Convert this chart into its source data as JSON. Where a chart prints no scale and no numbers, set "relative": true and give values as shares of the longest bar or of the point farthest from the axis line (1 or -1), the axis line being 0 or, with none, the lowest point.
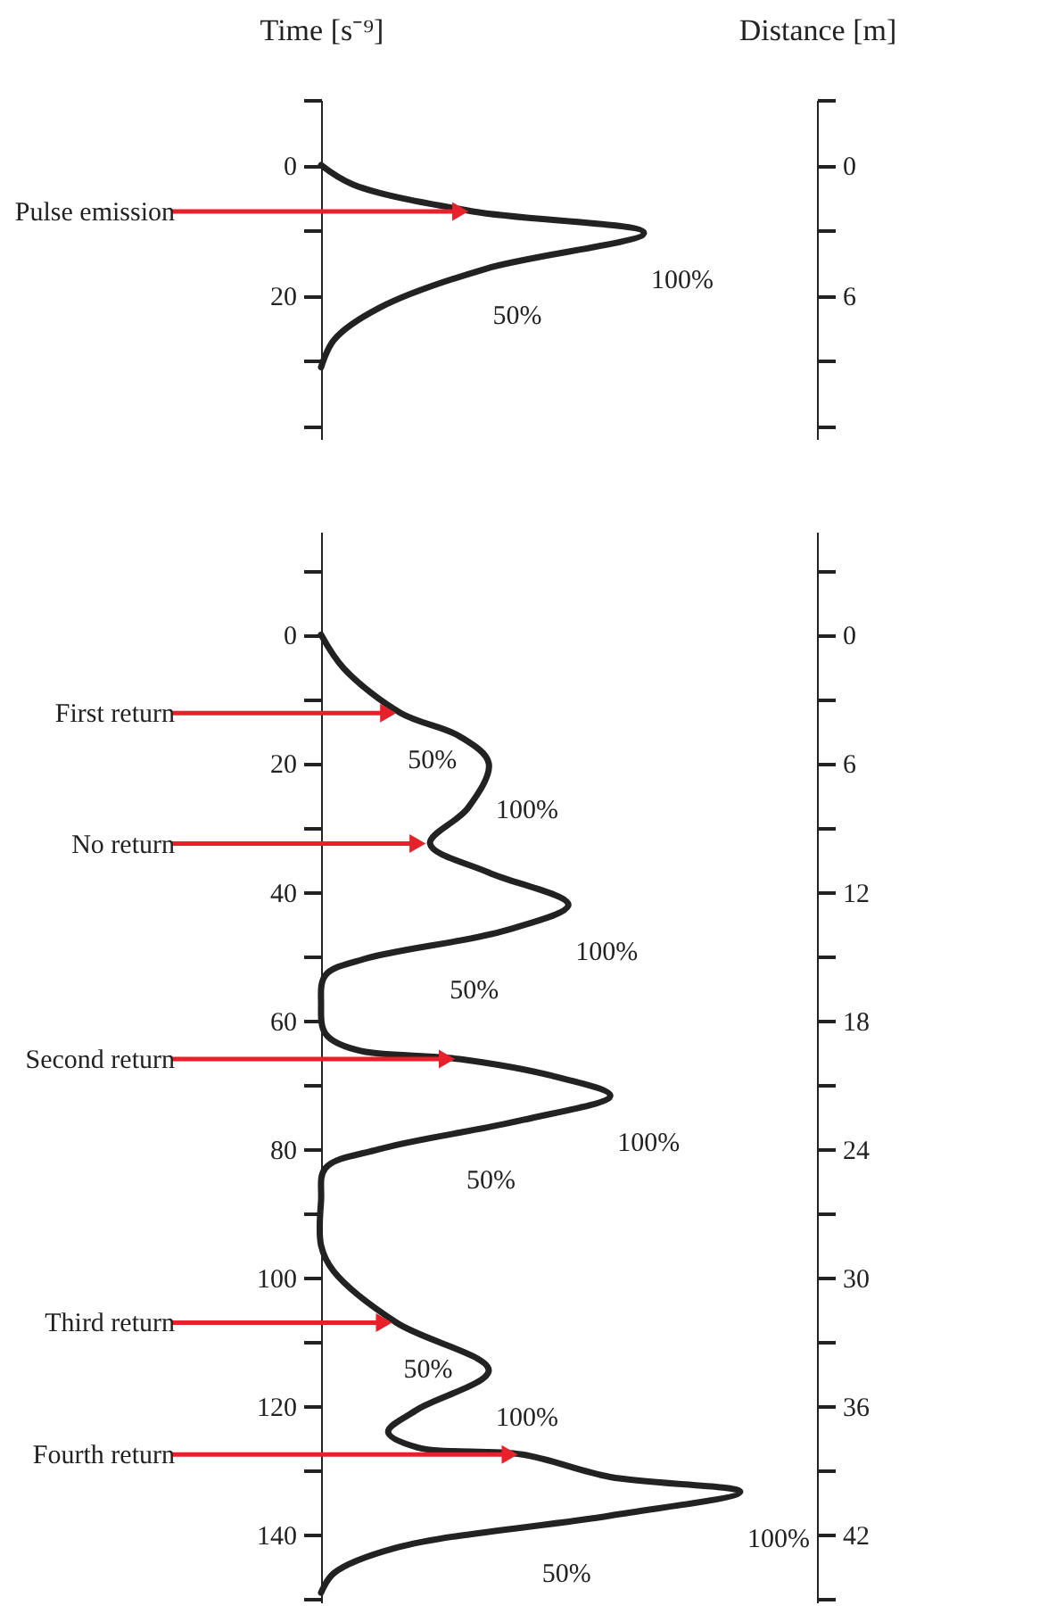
{
  "chart_data": [
    {
      "type": "line",
      "relative": true,
      "orientation": "horizontal",
      "ylabel": "Time [s⁻⁹]",
      "y2label": "Distance [m]",
      "ylim": [
        42,
        -10
      ],
      "yticks": [
        {
          "value": -10,
          "label": null
        },
        0,
        {
          "value": 10,
          "label": null
        },
        20,
        {
          "value": 30,
          "label": null
        },
        {
          "value": 40,
          "label": null
        }
      ],
      "y2lim": [
        12.6,
        -3
      ],
      "y2ticks": [
        {
          "value": -3,
          "label": null
        },
        0,
        {
          "value": 3,
          "label": null
        },
        6,
        {
          "value": 9,
          "label": null
        },
        {
          "value": 12,
          "label": null
        }
      ],
      "ref_lines": [
        {
          "axis": "y",
          "value": 7.1,
          "label": "Pulse emission",
          "color": "#e8202a"
        }
      ],
      "annotations": [
        {
          "text": "50%",
          "x": 0.51,
          "y": 15.9
        },
        {
          "text": "100%",
          "x": 1.0,
          "y": 10.4
        }
      ],
      "series": [
        {
          "color": "#222222",
          "x": [
            0,
            3,
            7.1,
            10.4,
            15.9,
            21.9,
            26.8,
            31
          ],
          "values": [
            0,
            0.1,
            0.47,
            1.0,
            0.51,
            0.18,
            0.04,
            0
          ]
        }
      ]
    },
    {
      "type": "line",
      "relative": true,
      "orientation": "horizontal",
      "ylim": [
        150.5,
        -16
      ],
      "yticks": [
        {
          "value": -10,
          "label": null
        },
        0,
        {
          "value": 10,
          "label": null
        },
        20,
        {
          "value": 30,
          "label": null
        },
        40,
        {
          "value": 50,
          "label": null
        },
        60,
        {
          "value": 70,
          "label": null
        },
        80,
        {
          "value": 90,
          "label": null
        },
        100,
        {
          "value": 110,
          "label": null
        },
        120,
        {
          "value": 130,
          "label": null
        },
        140,
        {
          "value": 150,
          "label": null
        }
      ],
      "y2lim": [
        45.15,
        -4.8
      ],
      "y2ticks": [
        {
          "value": -3,
          "label": null
        },
        0,
        {
          "value": 3,
          "label": null
        },
        6,
        {
          "value": 9,
          "label": null
        },
        12,
        {
          "value": 15,
          "label": null
        },
        18,
        {
          "value": 21,
          "label": null
        },
        24,
        {
          "value": 27,
          "label": null
        },
        30,
        {
          "value": 33,
          "label": null
        },
        36,
        {
          "value": 39,
          "label": null
        },
        42,
        {
          "value": 45,
          "label": null
        }
      ],
      "ref_lines": [
        {
          "axis": "y",
          "value": 12.2,
          "label": "First return",
          "color": "#e8202a"
        },
        {
          "axis": "y",
          "value": 32.5,
          "label": "No return",
          "color": "#e8202a"
        },
        {
          "axis": "y",
          "value": 66,
          "label": "Second return",
          "color": "#e8202a"
        },
        {
          "axis": "y",
          "value": 107,
          "label": "Third return",
          "color": "#e8202a"
        },
        {
          "axis": "y",
          "value": 127.5,
          "label": "Fourth return",
          "color": "#e8202a"
        }
      ],
      "annotations": [
        {
          "text": "50%",
          "x": 0.19,
          "y": 12.2
        },
        {
          "text": "100%",
          "x": 0.4,
          "y": 20
        },
        {
          "text": "50%",
          "x": 0.29,
          "y": 48
        },
        {
          "text": "100%",
          "x": 0.59,
          "y": 42
        },
        {
          "text": "50%",
          "x": 0.33,
          "y": 77.5
        },
        {
          "text": "100%",
          "x": 0.69,
          "y": 71.7
        },
        {
          "text": "50%",
          "x": 0.18,
          "y": 107
        },
        {
          "text": "100%",
          "x": 0.4,
          "y": 114.4
        },
        {
          "text": "50%",
          "x": 0.51,
          "y": 138.7
        },
        {
          "text": "100%",
          "x": 1.0,
          "y": 133.3
        }
      ],
      "series": [
        {
          "color": "#222222",
          "x": [
            0,
            5.3,
            12.2,
            15.8,
            20,
            27,
            32.5,
            37,
            42,
            46,
            50.5,
            53,
            57.5,
            62,
            64.5,
            66,
            68.6,
            71.7,
            75.5,
            80,
            83,
            88,
            95,
            99,
            107,
            114.4,
            120.5,
            124,
            126.4,
            127.5,
            131,
            133.3,
            137,
            142,
            146,
            149
          ],
          "values": [
            0,
            0.055,
            0.19,
            0.33,
            0.4,
            0.35,
            0.26,
            0.4,
            0.59,
            0.44,
            0.1,
            0.01,
            0,
            0.01,
            0.08,
            0.33,
            0.55,
            0.69,
            0.48,
            0.14,
            0.01,
            0,
            0,
            0.03,
            0.18,
            0.4,
            0.23,
            0.16,
            0.23,
            0.48,
            0.69,
            1.0,
            0.69,
            0.18,
            0.03,
            0
          ]
        }
      ]
    }
  ]
}
